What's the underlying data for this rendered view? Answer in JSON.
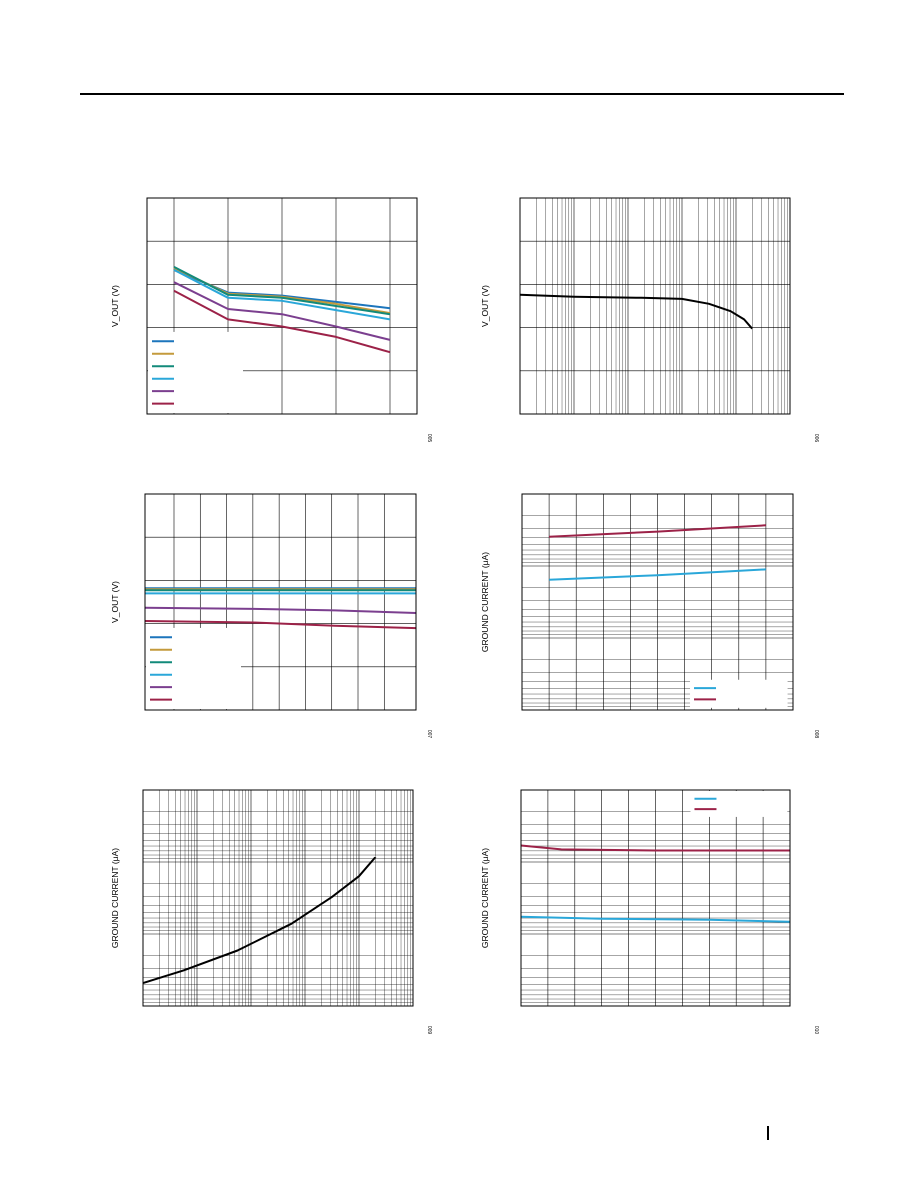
{
  "page": {
    "footer_text": ""
  },
  "colors": {
    "blue_dark": "#1c75bc",
    "orange": "#c49a3c",
    "green": "#128a7a",
    "cyan": "#2aa7d9",
    "purple": "#7b3f8f",
    "red": "#9c2248",
    "black": "#000000"
  },
  "chart_data": [
    {
      "id": "chart-1",
      "type": "line",
      "ylabel": "V_OUT (V)",
      "fig_id": "005",
      "grid": "linear",
      "legend": "bottom-left",
      "series": [
        {
          "color": "blue_dark",
          "y": [
            [
              0.1,
              0.333
            ],
            [
              0.3,
              0.438
            ],
            [
              0.5,
              0.452
            ],
            [
              0.7,
              0.481
            ],
            [
              0.9,
              0.51
            ]
          ]
        },
        {
          "color": "orange",
          "y": [
            [
              0.1,
              0.324
            ],
            [
              0.3,
              0.443
            ],
            [
              0.5,
              0.457
            ],
            [
              0.7,
              0.49
            ],
            [
              0.9,
              0.533
            ]
          ]
        },
        {
          "color": "green",
          "y": [
            [
              0.1,
              0.319
            ],
            [
              0.3,
              0.448
            ],
            [
              0.5,
              0.462
            ],
            [
              0.7,
              0.5
            ],
            [
              0.9,
              0.538
            ]
          ]
        },
        {
          "color": "cyan",
          "y": [
            [
              0.1,
              0.333
            ],
            [
              0.3,
              0.462
            ],
            [
              0.5,
              0.476
            ],
            [
              0.7,
              0.519
            ],
            [
              0.9,
              0.562
            ]
          ]
        },
        {
          "color": "purple",
          "y": [
            [
              0.1,
              0.39
            ],
            [
              0.3,
              0.514
            ],
            [
              0.5,
              0.538
            ],
            [
              0.7,
              0.595
            ],
            [
              0.9,
              0.657
            ]
          ]
        },
        {
          "color": "red",
          "y": [
            [
              0.1,
              0.429
            ],
            [
              0.3,
              0.562
            ],
            [
              0.5,
              0.595
            ],
            [
              0.7,
              0.643
            ],
            [
              0.9,
              0.714
            ]
          ]
        }
      ],
      "legend_entries": [
        "blue_dark",
        "orange",
        "green",
        "cyan",
        "purple",
        "red"
      ]
    },
    {
      "id": "chart-2",
      "type": "line",
      "ylabel": "V_OUT (V)",
      "fig_id": "006",
      "grid": "log-x",
      "series": [
        {
          "color": "black",
          "y": [
            [
              0.0,
              0.448
            ],
            [
              0.2,
              0.457
            ],
            [
              0.45,
              0.462
            ],
            [
              0.6,
              0.467
            ],
            [
              0.7,
              0.49
            ],
            [
              0.78,
              0.524
            ],
            [
              0.83,
              0.562
            ],
            [
              0.86,
              0.605
            ]
          ]
        }
      ]
    },
    {
      "id": "chart-3",
      "type": "line",
      "ylabel": "V_OUT (V)",
      "fig_id": "007",
      "grid": "linear-dense-x",
      "legend": "bottom-left",
      "series": [
        {
          "color": "blue_dark",
          "y": [
            [
              0.0,
              0.436
            ],
            [
              1.0,
              0.436
            ]
          ]
        },
        {
          "color": "orange",
          "y": [
            [
              0.0,
              0.441
            ],
            [
              1.0,
              0.441
            ]
          ]
        },
        {
          "color": "green",
          "y": [
            [
              0.0,
              0.446
            ],
            [
              1.0,
              0.446
            ]
          ]
        },
        {
          "color": "cyan",
          "y": [
            [
              0.0,
              0.46
            ],
            [
              1.0,
              0.46
            ]
          ]
        },
        {
          "color": "purple",
          "y": [
            [
              0.0,
              0.527
            ],
            [
              0.4,
              0.532
            ],
            [
              0.7,
              0.539
            ],
            [
              1.0,
              0.551
            ]
          ]
        },
        {
          "color": "red",
          "y": [
            [
              0.0,
              0.588
            ],
            [
              0.4,
              0.595
            ],
            [
              0.7,
              0.61
            ],
            [
              1.0,
              0.621
            ]
          ]
        }
      ],
      "legend_entries": [
        "blue_dark",
        "orange",
        "green",
        "cyan",
        "purple",
        "red"
      ]
    },
    {
      "id": "chart-4",
      "type": "line",
      "ylabel": "GROUND CURRENT (μA)",
      "fig_id": "008",
      "grid": "log-y",
      "legend": "bottom-right",
      "series": [
        {
          "color": "red",
          "y": [
            [
              0.1,
              0.198
            ],
            [
              0.5,
              0.174
            ],
            [
              0.9,
              0.145
            ]
          ]
        },
        {
          "color": "cyan",
          "y": [
            [
              0.1,
              0.397
            ],
            [
              0.5,
              0.376
            ],
            [
              0.9,
              0.349
            ]
          ]
        }
      ],
      "legend_entries": [
        "cyan",
        "red"
      ]
    },
    {
      "id": "chart-5",
      "type": "line",
      "ylabel": "GROUND CURRENT (μA)",
      "fig_id": "009",
      "grid": "log-log",
      "series": [
        {
          "color": "black",
          "y": [
            [
              0.0,
              0.894
            ],
            [
              0.15,
              0.835
            ],
            [
              0.35,
              0.743
            ],
            [
              0.55,
              0.619
            ],
            [
              0.7,
              0.495
            ],
            [
              0.8,
              0.399
            ],
            [
              0.86,
              0.312
            ],
            [
              0.86,
              0.311
            ]
          ]
        }
      ]
    },
    {
      "id": "chart-6",
      "type": "line",
      "ylabel": "GROUND CURRENT (μA)",
      "fig_id": "010",
      "grid": "log-y",
      "legend": "top-right",
      "series": [
        {
          "color": "red",
          "y": [
            [
              0.0,
              0.257
            ],
            [
              0.15,
              0.275
            ],
            [
              0.5,
              0.28
            ],
            [
              1.0,
              0.28
            ]
          ]
        },
        {
          "color": "cyan",
          "y": [
            [
              0.0,
              0.587
            ],
            [
              0.3,
              0.596
            ],
            [
              0.7,
              0.601
            ],
            [
              1.0,
              0.61
            ]
          ]
        }
      ],
      "legend_entries": [
        "cyan",
        "red"
      ]
    }
  ]
}
